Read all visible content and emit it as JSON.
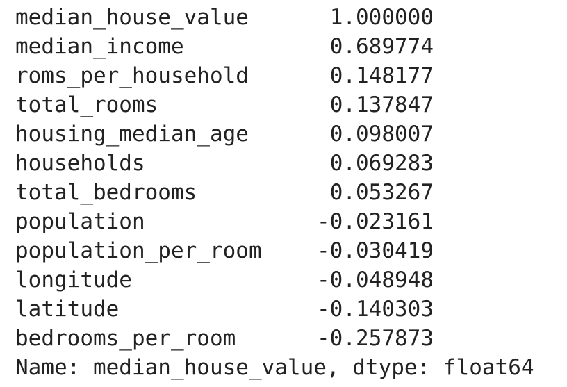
{
  "series_output": {
    "rows": [
      {
        "name": "median_house_value",
        "value": "1.000000"
      },
      {
        "name": "median_income",
        "value": "0.689774"
      },
      {
        "name": "roms_per_household",
        "value": "0.148177"
      },
      {
        "name": "total_rooms",
        "value": "0.137847"
      },
      {
        "name": "housing_median_age",
        "value": "0.098007"
      },
      {
        "name": "households",
        "value": "0.069283"
      },
      {
        "name": "total_bedrooms",
        "value": "0.053267"
      },
      {
        "name": "population",
        "value": "-0.023161"
      },
      {
        "name": "population_per_room",
        "value": "-0.030419"
      },
      {
        "name": "longitude",
        "value": "-0.048948"
      },
      {
        "name": "latitude",
        "value": "-0.140303"
      },
      {
        "name": "bedrooms_per_room",
        "value": "-0.257873"
      }
    ],
    "footer": "Name: median_house_value, dtype: float64"
  }
}
